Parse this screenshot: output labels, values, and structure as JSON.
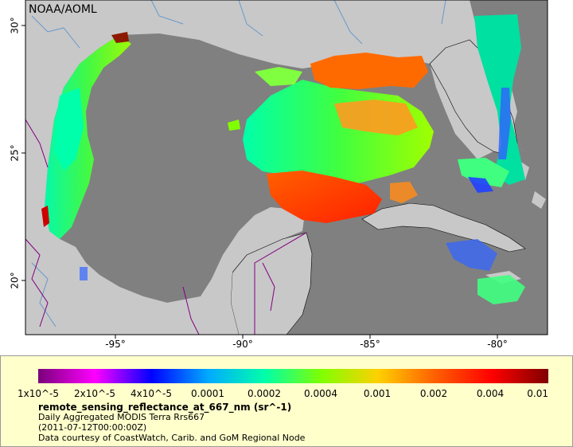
{
  "map": {
    "credit": "NOAA/AOML",
    "x_ticks": [
      "-95°",
      "-90°",
      "-85°",
      "-80°"
    ],
    "y_ticks": [
      "30°",
      "25°",
      "20°"
    ],
    "colors": {
      "land": "#c8c8c8",
      "ocean_nodata": "#808080",
      "coastline": "#000000",
      "rivers": "#6699cc",
      "borders": "#800080",
      "legend_bg": "#ffffcc"
    }
  },
  "legend": {
    "colorbar_stops": [
      "#7a007a",
      "#ff00ff",
      "#0000ff",
      "#00aaff",
      "#00ffaa",
      "#80ff00",
      "#ffd000",
      "#ff6000",
      "#ff0000",
      "#800000"
    ],
    "labels": [
      "1x10^-5",
      "2x10^-5",
      "4x10^-5",
      "0.0001",
      "0.0002",
      "0.0004",
      "0.001",
      "0.002",
      "0.004",
      "0.01"
    ],
    "variable": "remote_sensing_reflectance_at_667_nm (sr^-1)",
    "product": "Daily Aggregated MODIS Terra Rrs667",
    "time": "(2011-07-12T00:00:00Z)",
    "courtesy": "Data courtesy of CoastWatch, Carib. and GoM Regional Node"
  }
}
